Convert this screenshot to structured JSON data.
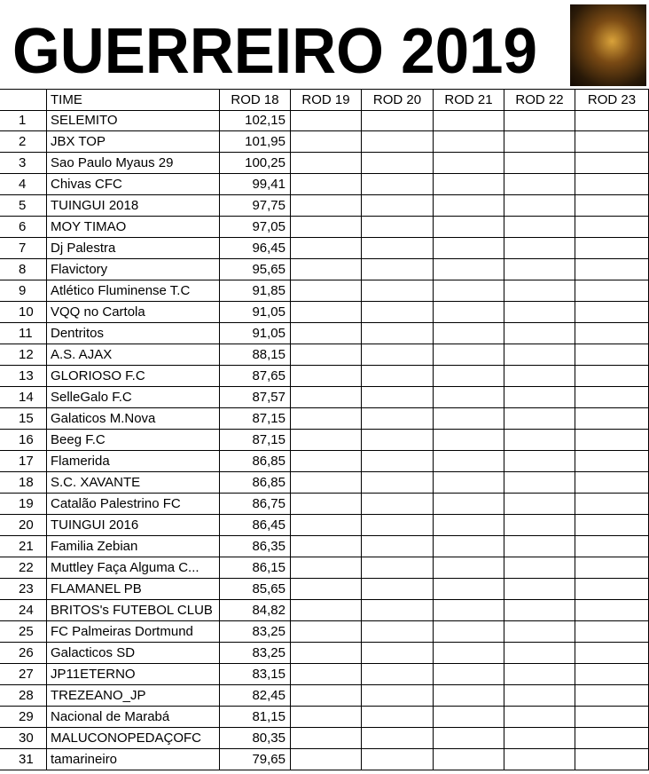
{
  "title": "GUERREIRO 2019",
  "table": {
    "header": [
      "TIME",
      "ROD 18",
      "ROD 19",
      "ROD 20",
      "ROD 21",
      "ROD 22",
      "ROD 23"
    ],
    "rows": [
      [
        1,
        "SELEMITO",
        "102,15"
      ],
      [
        2,
        "JBX TOP",
        "101,95"
      ],
      [
        3,
        "Sao Paulo Myaus 29",
        "100,25"
      ],
      [
        4,
        "Chivas CFC",
        "99,41"
      ],
      [
        5,
        "TUINGUI 2018",
        "97,75"
      ],
      [
        6,
        "MOY TIMAO",
        "97,05"
      ],
      [
        7,
        "Dj Palestra",
        "96,45"
      ],
      [
        8,
        "Flavictory",
        "95,65"
      ],
      [
        9,
        "Atlético Fluminense T.C",
        "91,85"
      ],
      [
        10,
        "VQQ no Cartola",
        "91,05"
      ],
      [
        11,
        "Dentritos",
        "91,05"
      ],
      [
        12,
        "A.S. AJAX",
        "88,15"
      ],
      [
        13,
        "GLORIOSO F.C",
        "87,65"
      ],
      [
        14,
        "SelleGalo F.C",
        "87,57"
      ],
      [
        15,
        "Galaticos M.Nova",
        "87,15"
      ],
      [
        16,
        "Beeg F.C",
        "87,15"
      ],
      [
        17,
        "Flamerida",
        "86,85"
      ],
      [
        18,
        "S.C. XAVANTE",
        "86,85"
      ],
      [
        19,
        "Catalão Palestrino FC",
        "86,75"
      ],
      [
        20,
        "TUINGUI 2016",
        "86,45"
      ],
      [
        21,
        "Familia Zebian",
        "86,35"
      ],
      [
        22,
        "Muttley Faça Alguma C...",
        "86,15"
      ],
      [
        23,
        "FLAMANEL PB",
        "85,65"
      ],
      [
        24,
        "BRITOS's FUTEBOL CLUB",
        "84,82"
      ],
      [
        25,
        "FC Palmeiras Dortmund",
        "83,25"
      ],
      [
        26,
        "Galacticos SD",
        "83,25"
      ],
      [
        27,
        "JP11ETERNO",
        "83,15"
      ],
      [
        28,
        "TREZEANO_JP",
        "82,45"
      ],
      [
        29,
        "Nacional de Marabá",
        "81,15"
      ],
      [
        30,
        "MALUCONOPEDAÇOFC",
        "80,35"
      ],
      [
        31,
        "tamarineiro",
        "79,65"
      ]
    ]
  }
}
